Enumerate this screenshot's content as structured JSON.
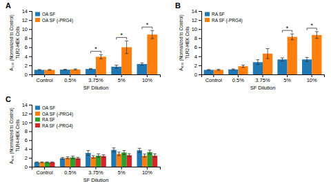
{
  "chart_data": [
    {
      "type": "bar",
      "title": "A",
      "x_label": "SF Dilution",
      "y_label": "A₅₃₀ (Normalized to Control)\nTLR2-HEK Cells",
      "categories": [
        "Control",
        "0.5%",
        "3.75%",
        "5%",
        "10%"
      ],
      "series": [
        {
          "name": "OA SF",
          "values": [
            1.0,
            1.05,
            1.2,
            1.7,
            2.3
          ],
          "errors": [
            0.08,
            0.08,
            0.12,
            0.35,
            0.25
          ]
        },
        {
          "name": "OA SF (-PRG4)",
          "values": [
            1.0,
            1.1,
            3.9,
            6.0,
            8.8
          ],
          "errors": [
            0.08,
            0.12,
            0.45,
            1.4,
            0.9
          ]
        }
      ],
      "ylim": [
        0,
        14
      ],
      "yticks": [
        0,
        2,
        4,
        6,
        8,
        10,
        12,
        14
      ],
      "grid": false,
      "legend": "upper left",
      "annotations": [
        {
          "text": "*",
          "category": "3.75%"
        },
        {
          "text": "*",
          "category": "5%"
        },
        {
          "text": "*",
          "category": "10%"
        }
      ]
    },
    {
      "type": "bar",
      "title": "B",
      "x_label": "SF Dilution",
      "y_label": "A₆₃₀ (Normalized to Control)\nTLR2-HEK Cells",
      "categories": [
        "Control",
        "0.5%",
        "3.75%",
        "5%",
        "10%"
      ],
      "series": [
        {
          "name": "RA SF",
          "values": [
            1.0,
            1.1,
            2.7,
            3.3,
            3.3
          ],
          "errors": [
            0.08,
            0.12,
            0.55,
            0.35,
            0.45
          ]
        },
        {
          "name": "RA SF (-PRG4)",
          "values": [
            1.0,
            1.8,
            4.6,
            8.3,
            8.7
          ],
          "errors": [
            0.12,
            0.25,
            1.1,
            0.65,
            0.75
          ]
        }
      ],
      "ylim": [
        0,
        14
      ],
      "yticks": [
        0,
        2,
        4,
        6,
        8,
        10,
        12,
        14
      ],
      "grid": false,
      "legend": "upper left",
      "annotations": [
        {
          "text": "*",
          "category": "5%"
        },
        {
          "text": "*",
          "category": "10%"
        }
      ]
    },
    {
      "type": "bar",
      "title": "C",
      "x_label": "SF Dilution",
      "y_label": "A₆₃₀ (Normalized to Control)\nTLR4-HEK Cells",
      "categories": [
        "Control",
        "0.5%",
        "3.75%",
        "5%",
        "10%"
      ],
      "series": [
        {
          "name": "OA SF",
          "values": [
            1.0,
            1.9,
            3.1,
            3.8,
            3.7
          ],
          "errors": [
            0.08,
            0.18,
            0.55,
            0.45,
            0.45
          ]
        },
        {
          "name": "OA SF (-PRG4)",
          "values": [
            1.0,
            2.0,
            2.2,
            2.9,
            2.5
          ],
          "errors": [
            0.08,
            0.22,
            0.3,
            0.4,
            0.35
          ]
        },
        {
          "name": "RA SF",
          "values": [
            1.0,
            2.1,
            2.5,
            3.2,
            3.3
          ],
          "errors": [
            0.08,
            0.28,
            0.4,
            0.45,
            0.45
          ]
        },
        {
          "name": "RA SF (-PRG4)",
          "values": [
            1.0,
            1.9,
            2.4,
            2.6,
            2.5
          ],
          "errors": [
            0.08,
            0.22,
            0.3,
            0.35,
            0.4
          ]
        }
      ],
      "ylim": [
        0,
        14
      ],
      "yticks": [
        0,
        2,
        4,
        6,
        8,
        10,
        12,
        14
      ],
      "grid": false,
      "legend": "upper left"
    }
  ]
}
